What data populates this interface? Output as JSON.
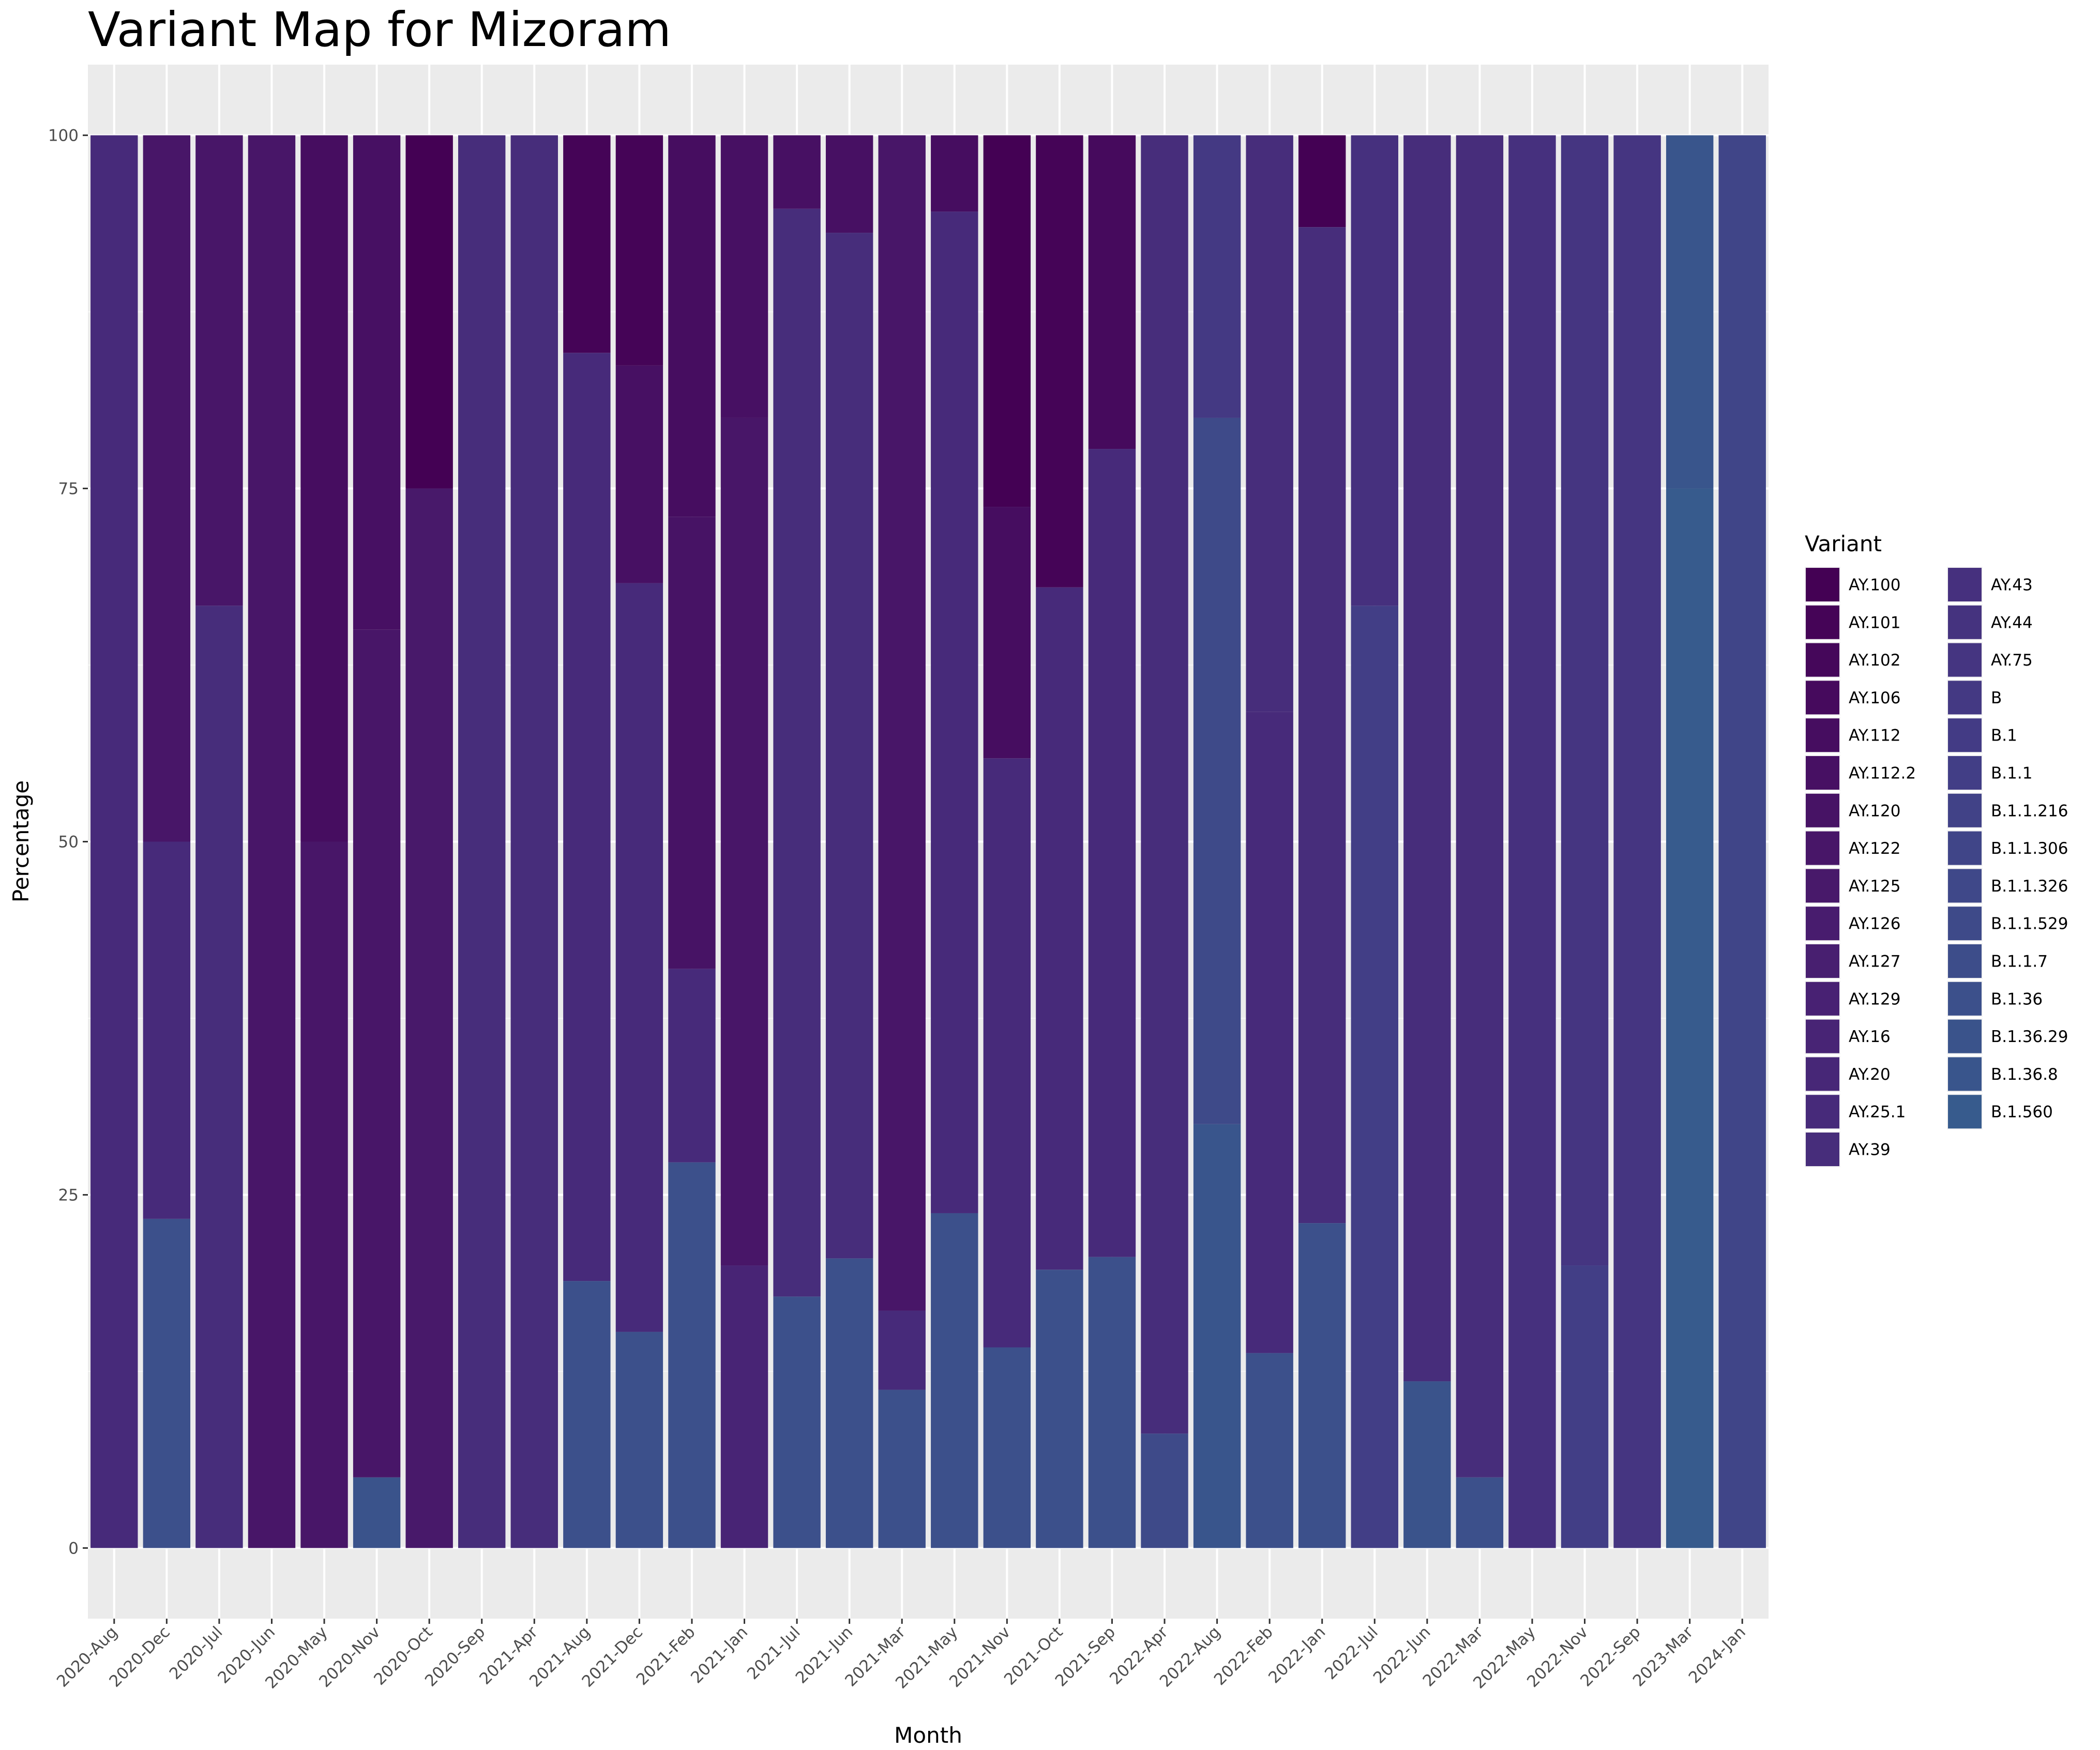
{
  "chart_data": {
    "type": "bar",
    "stacked": true,
    "title": "Variant Map for Mizoram",
    "xlabel": "Month",
    "ylabel": "Percentage",
    "ylim": [
      -5,
      105
    ],
    "yticks": [
      0,
      25,
      50,
      75,
      100
    ],
    "grid": true,
    "legend_title": "Variant",
    "legend_position": "right",
    "legend_columns": 2,
    "categories": [
      "2020-Aug",
      "2020-Dec",
      "2020-Jul",
      "2020-Jun",
      "2020-May",
      "2020-Nov",
      "2020-Oct",
      "2020-Sep",
      "2021-Apr",
      "2021-Aug",
      "2021-Dec",
      "2021-Feb",
      "2021-Jan",
      "2021-Jul",
      "2021-Jun",
      "2021-Mar",
      "2021-May",
      "2021-Nov",
      "2021-Oct",
      "2021-Sep",
      "2022-Apr",
      "2022-Aug",
      "2022-Feb",
      "2022-Jan",
      "2022-Jul",
      "2022-Jun",
      "2022-Mar",
      "2022-May",
      "2022-Nov",
      "2022-Sep",
      "2023-Mar",
      "2024-Jan"
    ],
    "legend": [
      {
        "name": "AY.100",
        "color": "#440154"
      },
      {
        "name": "AY.101",
        "color": "#450457"
      },
      {
        "name": "AY.102",
        "color": "#45075a"
      },
      {
        "name": "AY.106",
        "color": "#460a5d"
      },
      {
        "name": "AY.112",
        "color": "#460d60"
      },
      {
        "name": "AY.112.2",
        "color": "#471063"
      },
      {
        "name": "AY.120",
        "color": "#471365"
      },
      {
        "name": "AY.122",
        "color": "#481668"
      },
      {
        "name": "AY.125",
        "color": "#48196a"
      },
      {
        "name": "AY.126",
        "color": "#481c6e"
      },
      {
        "name": "AY.127",
        "color": "#481f70"
      },
      {
        "name": "AY.129",
        "color": "#482173"
      },
      {
        "name": "AY.16",
        "color": "#482475"
      },
      {
        "name": "AY.20",
        "color": "#472777"
      },
      {
        "name": "AY.25.1",
        "color": "#472a7a"
      },
      {
        "name": "AY.39",
        "color": "#472d7b"
      },
      {
        "name": "AY.43",
        "color": "#46307e"
      },
      {
        "name": "AY.44",
        "color": "#45337f"
      },
      {
        "name": "AY.75",
        "color": "#453581"
      },
      {
        "name": "B",
        "color": "#443983"
      },
      {
        "name": "B.1",
        "color": "#433b85"
      },
      {
        "name": "B.1.1",
        "color": "#423e86"
      },
      {
        "name": "B.1.1.216",
        "color": "#414287"
      },
      {
        "name": "B.1.1.306",
        "color": "#404588"
      },
      {
        "name": "B.1.1.326",
        "color": "#3f4889"
      },
      {
        "name": "B.1.1.529",
        "color": "#3e4a89"
      },
      {
        "name": "B.1.1.7",
        "color": "#3d4d8a"
      },
      {
        "name": "B.1.36",
        "color": "#3c508b"
      },
      {
        "name": "B.1.36.29",
        "color": "#3a538b"
      },
      {
        "name": "B.1.36.8",
        "color": "#39558c"
      },
      {
        "name": "B.1.560",
        "color": "#375b8d"
      }
    ],
    "stacks": [
      [
        {
          "v": "AY.25.1",
          "y": 100
        }
      ],
      [
        {
          "v": "B.1.36",
          "y": 23.3
        },
        {
          "v": "AY.25.1",
          "y": 26.7
        },
        {
          "v": "AY.122",
          "y": 50
        }
      ],
      [
        {
          "v": "AY.39",
          "y": 66.7
        },
        {
          "v": "AY.122",
          "y": 33.3
        }
      ],
      [
        {
          "v": "AY.122",
          "y": 100
        }
      ],
      [
        {
          "v": "AY.122",
          "y": 50
        },
        {
          "v": "AY.112",
          "y": 50
        }
      ],
      [
        {
          "v": "B.1.36.29",
          "y": 5
        },
        {
          "v": "AY.122",
          "y": 60
        },
        {
          "v": "AY.112.2",
          "y": 35
        }
      ],
      [
        {
          "v": "AY.125",
          "y": 75
        },
        {
          "v": "AY.100",
          "y": 25
        }
      ],
      [
        {
          "v": "AY.39",
          "y": 100
        }
      ],
      [
        {
          "v": "AY.39",
          "y": 100
        }
      ],
      [
        {
          "v": "B.1.36",
          "y": 18.9
        },
        {
          "v": "AY.25.1",
          "y": 65.7
        },
        {
          "v": "AY.101",
          "y": 15.4
        }
      ],
      [
        {
          "v": "B.1.36",
          "y": 15.3
        },
        {
          "v": "AY.25.1",
          "y": 53
        },
        {
          "v": "AY.112.2",
          "y": 15.4
        },
        {
          "v": "AY.101",
          "y": 16.3
        }
      ],
      [
        {
          "v": "B.1.36",
          "y": 27.3
        },
        {
          "v": "AY.25.1",
          "y": 13.7
        },
        {
          "v": "AY.120",
          "y": 32
        },
        {
          "v": "AY.112",
          "y": 27
        }
      ],
      [
        {
          "v": "AY.16",
          "y": 20
        },
        {
          "v": "AY.122",
          "y": 60
        },
        {
          "v": "AY.112.2",
          "y": 20
        }
      ],
      [
        {
          "v": "B.1.36",
          "y": 17.8
        },
        {
          "v": "AY.39",
          "y": 77
        },
        {
          "v": "AY.112.2",
          "y": 5.2
        }
      ],
      [
        {
          "v": "B.1.36",
          "y": 20.5
        },
        {
          "v": "AY.39",
          "y": 72.6
        },
        {
          "v": "AY.112.2",
          "y": 6.9
        }
      ],
      [
        {
          "v": "B.1.36",
          "y": 11.2
        },
        {
          "v": "AY.25.1",
          "y": 5.6
        },
        {
          "v": "AY.122",
          "y": 83.2
        }
      ],
      [
        {
          "v": "B.1.36",
          "y": 23.7
        },
        {
          "v": "AY.25.1",
          "y": 70.9
        },
        {
          "v": "AY.112",
          "y": 5.4
        }
      ],
      [
        {
          "v": "B.1.36",
          "y": 14.2
        },
        {
          "v": "AY.25.1",
          "y": 41.7
        },
        {
          "v": "AY.112",
          "y": 17.8
        },
        {
          "v": "AY.100",
          "y": 26.3
        }
      ],
      [
        {
          "v": "B.1.36",
          "y": 19.7
        },
        {
          "v": "AY.25.1",
          "y": 48.3
        },
        {
          "v": "AY.101",
          "y": 32
        }
      ],
      [
        {
          "v": "B.1.36",
          "y": 20.6
        },
        {
          "v": "AY.25.1",
          "y": 57.2
        },
        {
          "v": "AY.106",
          "y": 22.2
        }
      ],
      [
        {
          "v": "B.1.1.529",
          "y": 8.1
        },
        {
          "v": "AY.39",
          "y": 91.9
        }
      ],
      [
        {
          "v": "B.1.36.8",
          "y": 30
        },
        {
          "v": "B.1.1.529",
          "y": 50
        },
        {
          "v": "B",
          "y": 20
        }
      ],
      [
        {
          "v": "B.1.36",
          "y": 13.8
        },
        {
          "v": "AY.25.1",
          "y": 45.4
        },
        {
          "v": "AY.39",
          "y": 40.8
        }
      ],
      [
        {
          "v": "B.1.36",
          "y": 23
        },
        {
          "v": "AY.39",
          "y": 70.5
        },
        {
          "v": "AY.100",
          "y": 6.5
        }
      ],
      [
        {
          "v": "B.1.1",
          "y": 66.7
        },
        {
          "v": "AY.43",
          "y": 33.3
        }
      ],
      [
        {
          "v": "B.1.36.29",
          "y": 11.8
        },
        {
          "v": "AY.39",
          "y": 88.2
        }
      ],
      [
        {
          "v": "B.1.36",
          "y": 5
        },
        {
          "v": "AY.39",
          "y": 95
        }
      ],
      [
        {
          "v": "AY.43",
          "y": 100
        }
      ],
      [
        {
          "v": "B.1.1",
          "y": 20
        },
        {
          "v": "AY.75",
          "y": 80
        }
      ],
      [
        {
          "v": "AY.75",
          "y": 100
        }
      ],
      [
        {
          "v": "B.1.560",
          "y": 75
        },
        {
          "v": "B.1.36.8",
          "y": 25
        }
      ],
      [
        {
          "v": "B.1.1.306",
          "y": 100
        }
      ]
    ]
  }
}
